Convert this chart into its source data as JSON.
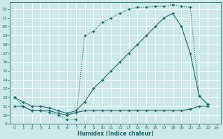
{
  "xlabel": "Humidex (Indice chaleur)",
  "bg_color": "#cce8e8",
  "grid_color": "#ffffff",
  "line_color": "#1a6b6b",
  "xlim": [
    -0.5,
    23.5
  ],
  "ylim": [
    9,
    22.8
  ],
  "xticks": [
    0,
    1,
    2,
    3,
    4,
    5,
    6,
    7,
    8,
    9,
    10,
    11,
    12,
    13,
    14,
    15,
    16,
    17,
    18,
    19,
    20,
    21,
    22,
    23
  ],
  "yticks": [
    9,
    10,
    11,
    12,
    13,
    14,
    15,
    16,
    17,
    18,
    19,
    20,
    21,
    22
  ],
  "curve1_x": [
    0,
    1,
    2,
    3,
    4,
    5,
    6,
    7,
    8,
    9,
    10,
    11,
    12,
    13,
    14,
    15,
    16,
    17,
    18,
    19,
    20,
    21,
    22
  ],
  "curve1_y": [
    11,
    11,
    10.5,
    10.5,
    10.5,
    10.2,
    10.0,
    10.3,
    10.5,
    10.5,
    10.5,
    10.5,
    10.5,
    10.5,
    10.5,
    10.5,
    10.5,
    10.5,
    10.5,
    10.5,
    10.7,
    11.0,
    11.0
  ],
  "curve2_x": [
    0,
    1,
    2,
    3,
    4,
    5,
    6,
    7,
    8,
    9,
    10,
    11,
    12,
    13,
    14,
    15,
    16,
    17,
    18,
    19,
    20,
    21,
    22
  ],
  "curve2_y": [
    12,
    11,
    10.5,
    10.5,
    10.3,
    10.0,
    9.5,
    9.5,
    19.0,
    19.5,
    20.5,
    21.0,
    21.5,
    22.0,
    22.2,
    22.2,
    22.3,
    22.3,
    22.5,
    22.3,
    22.2,
    12.2,
    11.2
  ],
  "curve3_x": [
    0,
    1,
    2,
    3,
    4,
    5,
    6,
    7,
    8,
    9,
    10,
    11,
    12,
    13,
    14,
    15,
    16,
    17,
    18,
    19,
    20,
    21,
    22
  ],
  "curve3_y": [
    12,
    11.5,
    11.0,
    11.0,
    10.8,
    10.5,
    10.2,
    10.5,
    11.5,
    13.0,
    14.0,
    15.0,
    16.0,
    17.0,
    18.0,
    19.0,
    20.0,
    21.0,
    21.5,
    20.0,
    17.0,
    12.2,
    11.2
  ]
}
